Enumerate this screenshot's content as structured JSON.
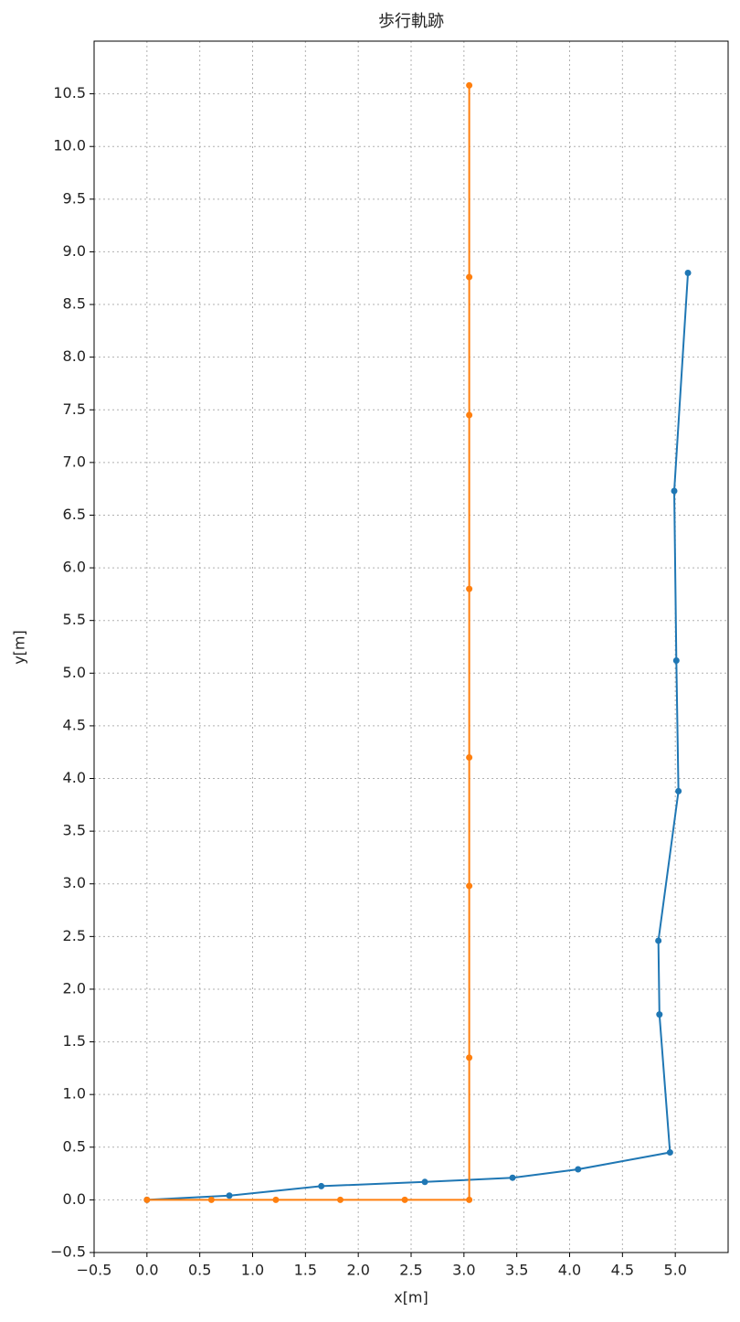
{
  "chart_data": {
    "type": "line",
    "title": "歩行軌跡",
    "xlabel": "x[m]",
    "ylabel": "y[m]",
    "xlim": [
      -0.5,
      5.5
    ],
    "ylim": [
      -0.5,
      11.0
    ],
    "xticks": [
      {
        "value": -0.5,
        "label": "−0.5"
      },
      {
        "value": 0,
        "label": "0.0"
      },
      0.5,
      {
        "value": 1,
        "label": "1.0"
      },
      1.5,
      {
        "value": 2,
        "label": "2.0"
      },
      2.5,
      {
        "value": 3,
        "label": "3.0"
      },
      3.5,
      {
        "value": 4,
        "label": "4.0"
      },
      4.5,
      {
        "value": 5,
        "label": "5.0"
      }
    ],
    "yticks": [
      {
        "value": -0.5,
        "label": "−0.5"
      },
      {
        "value": 0,
        "label": "0.0"
      },
      0.5,
      {
        "value": 1,
        "label": "1.0"
      },
      1.5,
      {
        "value": 2,
        "label": "2.0"
      },
      2.5,
      {
        "value": 3,
        "label": "3.0"
      },
      3.5,
      {
        "value": 4,
        "label": "4.0"
      },
      4.5,
      {
        "value": 5,
        "label": "5.0"
      },
      5.5,
      {
        "value": 6,
        "label": "6.0"
      },
      6.5,
      {
        "value": 7,
        "label": "7.0"
      },
      7.5,
      {
        "value": 8,
        "label": "8.0"
      },
      8.5,
      {
        "value": 9,
        "label": "9.0"
      },
      9.5,
      {
        "value": 10,
        "label": "10.0"
      },
      10.5
    ],
    "grid": true,
    "series": [
      {
        "color": "#1f77b4",
        "x": [
          0,
          0.78,
          1.65,
          2.63,
          3.46,
          4.08,
          4.95,
          4.85,
          4.84,
          5.03,
          5.01,
          4.99,
          5.12
        ],
        "values": [
          0,
          0.04,
          0.13,
          0.17,
          0.21,
          0.29,
          0.45,
          1.76,
          2.46,
          3.88,
          5.12,
          6.73,
          8.8
        ]
      },
      {
        "color": "#ff7f0e",
        "x": [
          0,
          0.61,
          1.22,
          1.83,
          2.44,
          3.05,
          3.05,
          3.05,
          3.05,
          3.05,
          3.05,
          3.05,
          3.05
        ],
        "values": [
          0,
          0,
          0,
          0,
          0,
          0,
          1.35,
          2.98,
          4.2,
          5.8,
          7.45,
          8.76,
          10.58
        ]
      }
    ]
  }
}
